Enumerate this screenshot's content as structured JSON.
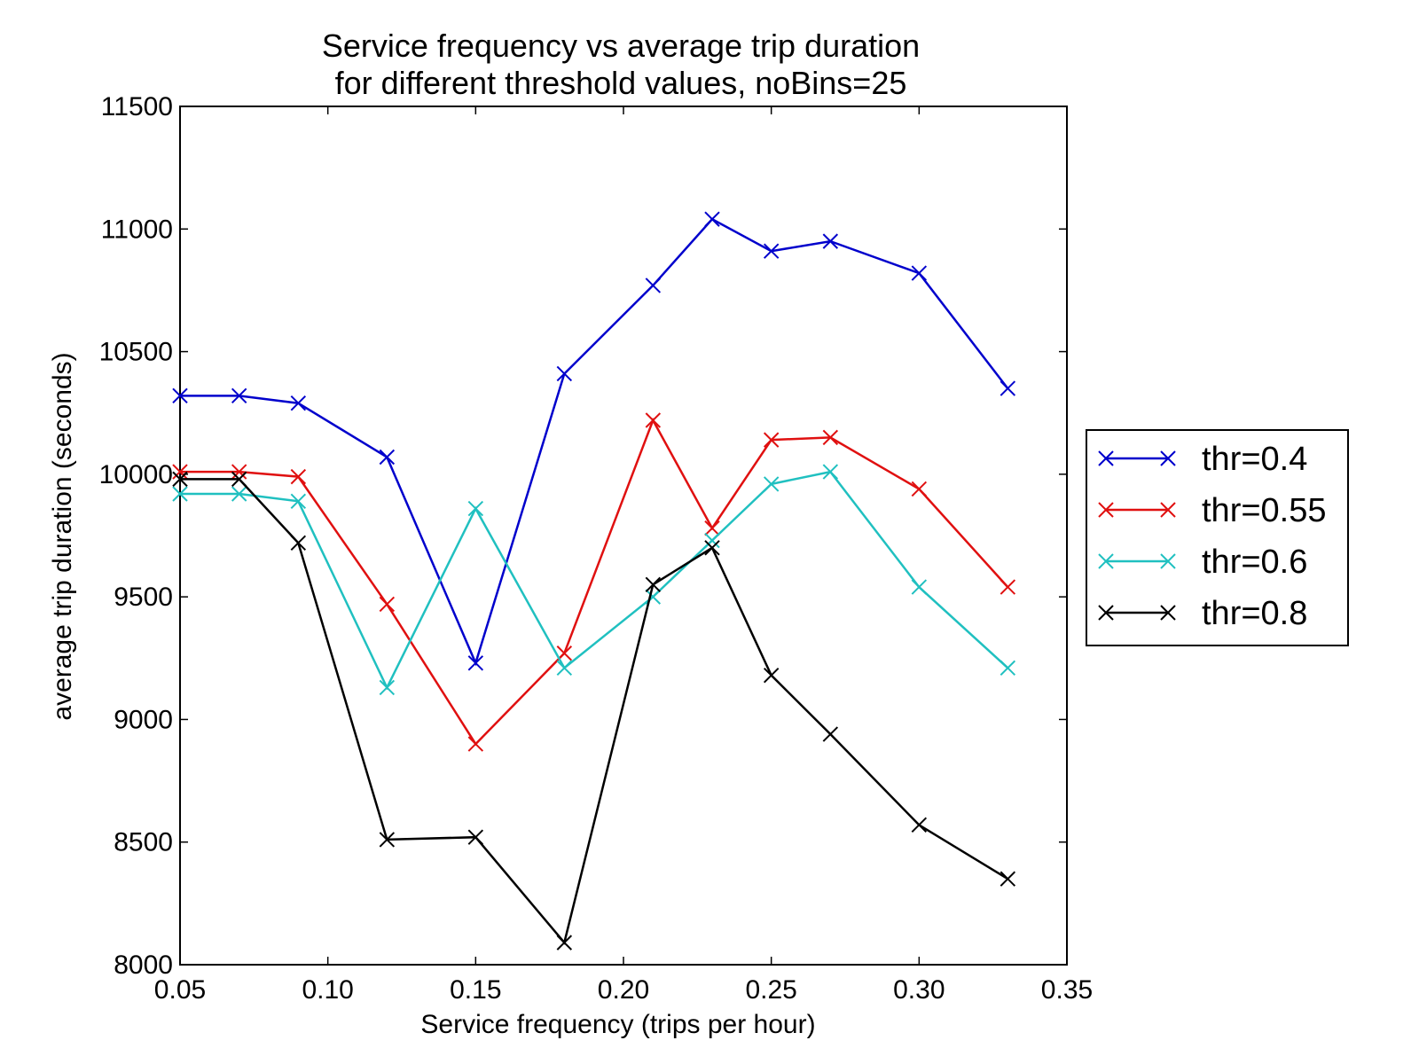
{
  "chart_data": {
    "type": "line",
    "title": [
      "Service frequency vs average trip duration",
      "for different threshold values, noBins=25"
    ],
    "xlabel": "Service frequency (trips per hour)",
    "ylabel": "average trip duration (seconds)",
    "xlim": [
      0.05,
      0.35
    ],
    "ylim": [
      8000,
      11500
    ],
    "xticks": [
      0.05,
      0.1,
      0.15,
      0.2,
      0.25,
      0.3,
      0.35
    ],
    "xtick_labels": [
      "0.05",
      "0.10",
      "0.15",
      "0.20",
      "0.25",
      "0.30",
      "0.35"
    ],
    "yticks": [
      8000,
      8500,
      9000,
      9500,
      10000,
      10500,
      11000,
      11500
    ],
    "ytick_labels": [
      "8000",
      "8500",
      "9000",
      "9500",
      "10000",
      "10500",
      "11000",
      "11500"
    ],
    "grid": false,
    "legend_position": "right, outside plot area",
    "marker": "x",
    "x": [
      0.05,
      0.07,
      0.09,
      0.12,
      0.15,
      0.18,
      0.21,
      0.23,
      0.25,
      0.27,
      0.3,
      0.33
    ],
    "series": [
      {
        "name": "thr=0.4",
        "color": "#0000cc",
        "values": [
          10320,
          10320,
          10290,
          10070,
          9230,
          10410,
          10770,
          11040,
          10910,
          10950,
          10820,
          10350
        ]
      },
      {
        "name": "thr=0.55",
        "color": "#e01010",
        "values": [
          10010,
          10010,
          9990,
          9470,
          8900,
          9270,
          10220,
          9780,
          10140,
          10150,
          9940,
          9540
        ]
      },
      {
        "name": "thr=0.6",
        "color": "#20c0c0",
        "values": [
          9920,
          9920,
          9890,
          9130,
          9860,
          9210,
          9500,
          9730,
          9960,
          10010,
          9540,
          9210
        ]
      },
      {
        "name": "thr=0.8",
        "color": "#000000",
        "values": [
          9980,
          9980,
          9720,
          8510,
          8520,
          8090,
          9550,
          9700,
          9180,
          8940,
          8570,
          8350
        ]
      }
    ]
  }
}
